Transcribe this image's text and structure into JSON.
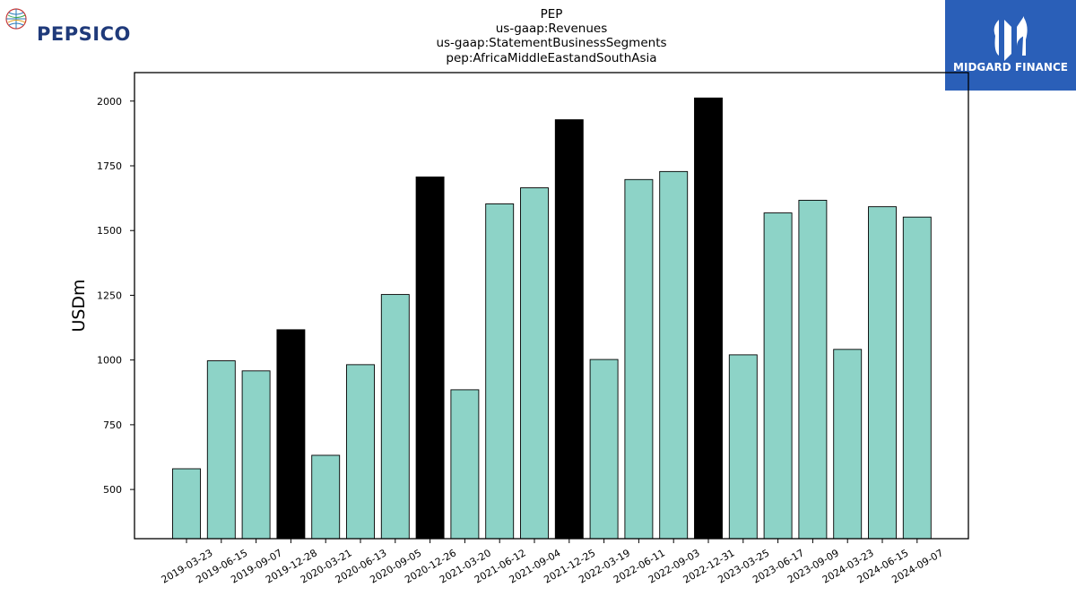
{
  "logos": {
    "left_logo_text": "PEPSICO",
    "right_logo_text": "MIDGARD FINANCE",
    "right_logo_color": "#2a5fb8",
    "left_logo_color": "#1f3a7a"
  },
  "chart_data": {
    "type": "bar",
    "title_lines": [
      "PEP",
      "us-gaap:Revenues",
      "us-gaap:StatementBusinessSegments",
      "pep:AfricaMiddleEastandSouthAsia"
    ],
    "xlabel": "",
    "ylabel": "USDm",
    "ylim": [
      310,
      2110
    ],
    "yticks": [
      500,
      750,
      1000,
      1250,
      1500,
      1750,
      2000
    ],
    "grid": false,
    "colors": {
      "regular": "#8dd3c7",
      "highlight": "#000000",
      "edge": "#000000"
    },
    "categories": [
      "2019-03-23",
      "2019-06-15",
      "2019-09-07",
      "2019-12-28",
      "2020-03-21",
      "2020-06-13",
      "2020-09-05",
      "2020-12-26",
      "2021-03-20",
      "2021-06-12",
      "2021-09-04",
      "2021-12-25",
      "2022-03-19",
      "2022-06-11",
      "2022-09-03",
      "2022-12-31",
      "2023-03-25",
      "2023-06-17",
      "2023-09-09",
      "2024-03-23",
      "2024-06-15",
      "2024-09-07"
    ],
    "values": [
      580,
      997,
      958,
      1117,
      632,
      982,
      1253,
      1707,
      885,
      1603,
      1665,
      1928,
      1002,
      1697,
      1728,
      2012,
      1020,
      1568,
      1617,
      1041,
      1592,
      1552
    ],
    "highlight": [
      false,
      false,
      false,
      true,
      false,
      false,
      false,
      true,
      false,
      false,
      false,
      true,
      false,
      false,
      false,
      true,
      false,
      false,
      false,
      false,
      false,
      false
    ]
  }
}
